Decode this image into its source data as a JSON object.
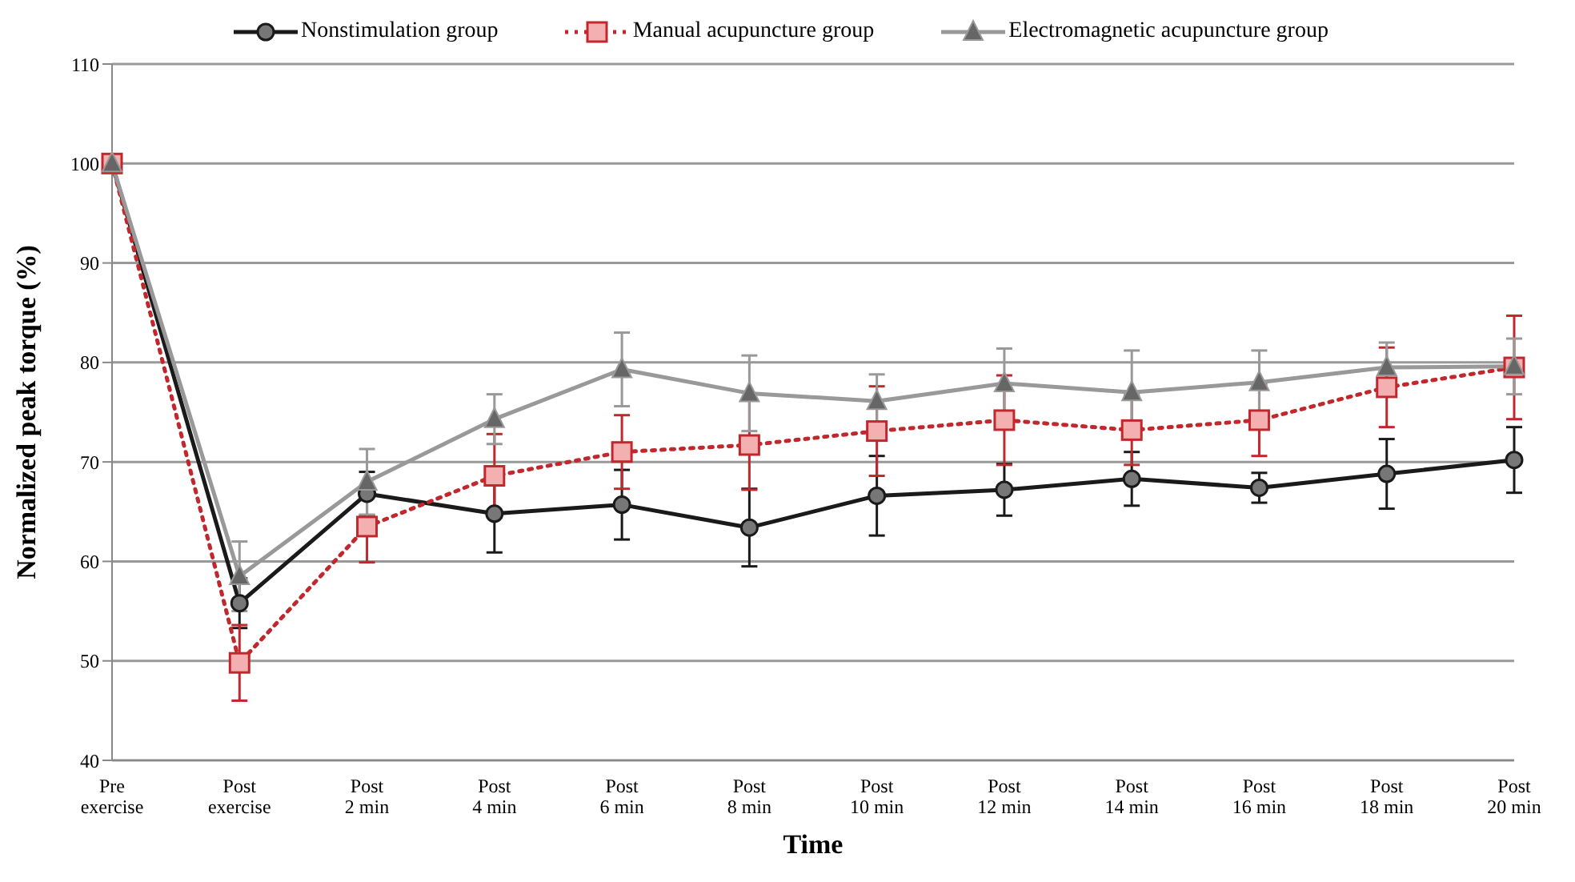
{
  "chart_data": {
    "type": "line",
    "xlabel": "Time",
    "ylabel": "Normalized peak torque (%)",
    "categories": [
      "Pre exercise",
      "Post exercise",
      "Post 2 min",
      "Post 4 min",
      "Post 6 min",
      "Post 8 min",
      "Post 10 min",
      "Post 12 min",
      "Post 14 min",
      "Post 16 min",
      "Post 18 min",
      "Post 20 min"
    ],
    "ylim": [
      40,
      110
    ],
    "yticks": [
      40,
      50,
      60,
      70,
      80,
      90,
      100,
      110
    ],
    "grid": "y",
    "legend": "top",
    "series": [
      {
        "name": "Nonstimulation group",
        "color": "#1a1a1a",
        "marker": "circle",
        "line_style": "solid",
        "values": [
          100,
          55.8,
          66.8,
          64.8,
          65.7,
          63.4,
          66.6,
          67.2,
          68.3,
          67.4,
          68.8,
          70.2
        ],
        "errors": [
          null,
          2.5,
          2.2,
          3.9,
          3.5,
          3.9,
          4,
          2.6,
          2.7,
          1.5,
          3.5,
          3.3
        ]
      },
      {
        "name": "Manual acupuncture group",
        "color": "#c0282d",
        "marker": "square",
        "line_style": "dotted",
        "values": [
          100,
          49.8,
          63.5,
          68.6,
          71,
          71.7,
          73.1,
          74.2,
          73.2,
          74.2,
          77.5,
          79.5
        ],
        "errors": [
          null,
          3.8,
          3.6,
          4.2,
          3.7,
          4.5,
          4.5,
          4.5,
          3.5,
          3.6,
          4,
          5.2
        ]
      },
      {
        "name": "Electromagnetic acupuncture group",
        "color": "#999999",
        "marker": "triangle",
        "line_style": "solid",
        "values": [
          100,
          58.5,
          68,
          74.3,
          79.3,
          76.9,
          76.1,
          77.9,
          77,
          78,
          79.5,
          79.6
        ],
        "errors": [
          null,
          3.5,
          3.3,
          2.5,
          3.7,
          3.8,
          2.7,
          3.5,
          4.2,
          3.2,
          2.5,
          2.8
        ]
      }
    ]
  }
}
